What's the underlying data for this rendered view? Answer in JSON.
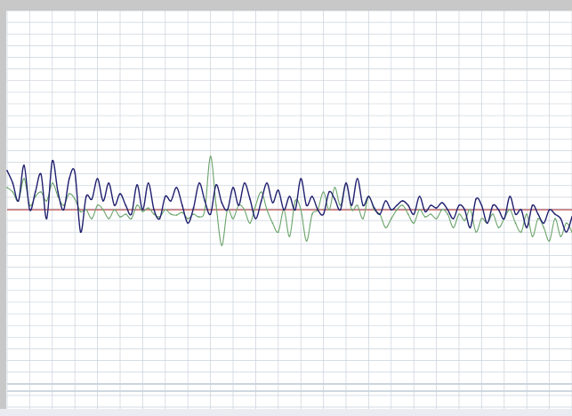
{
  "chart_data": {
    "type": "line",
    "title": "",
    "xlabel": "",
    "ylabel": "",
    "grid": true,
    "legend": "none",
    "xlim": [
      0,
      100
    ],
    "ylim": [
      -1,
      1
    ],
    "baseline": 0,
    "x_ticks": [
      "",
      "",
      "",
      "",
      "",
      "",
      "",
      "",
      "",
      "",
      "",
      "",
      "",
      "",
      "",
      "",
      "",
      "",
      "",
      "",
      "",
      "",
      "",
      "",
      ""
    ],
    "series": [
      {
        "color": "#1f1f6e",
        "x": [
          0,
          1,
          2,
          3,
          4,
          5,
          6,
          7,
          8,
          9,
          10,
          11,
          12,
          13,
          14,
          15,
          16,
          17,
          18,
          19,
          20,
          21,
          22,
          23,
          24,
          25,
          26,
          27,
          28,
          29,
          30,
          31,
          32,
          33,
          34,
          35,
          36,
          37,
          38,
          39,
          40,
          41,
          42,
          43,
          44,
          45,
          46,
          47,
          48,
          49,
          50,
          51,
          52,
          53,
          54,
          55,
          56,
          57,
          58,
          59,
          60,
          61,
          62,
          63,
          64,
          65,
          66,
          67,
          68,
          69,
          70,
          71,
          72,
          73,
          74,
          75,
          76,
          77,
          78,
          79,
          80,
          81,
          82,
          83,
          84,
          85,
          86,
          87,
          88,
          89,
          90,
          91,
          92,
          93,
          94,
          95,
          96,
          97,
          98,
          99,
          100
        ],
        "values": [
          0.44,
          0.3,
          0.1,
          0.5,
          0.0,
          0.2,
          0.4,
          -0.1,
          0.55,
          0.2,
          0.0,
          0.35,
          0.42,
          -0.25,
          0.15,
          0.12,
          0.35,
          0.1,
          0.3,
          0.05,
          0.18,
          0.05,
          -0.05,
          0.28,
          0.0,
          0.3,
          0.0,
          -0.1,
          0.15,
          0.1,
          0.25,
          0.05,
          -0.15,
          0.02,
          0.3,
          0.1,
          -0.05,
          0.28,
          0.08,
          0.0,
          0.25,
          0.05,
          0.3,
          0.12,
          -0.1,
          0.1,
          0.3,
          0.08,
          0.22,
          0.0,
          0.15,
          0.0,
          0.35,
          0.05,
          0.15,
          0.0,
          -0.05,
          0.2,
          0.12,
          0.0,
          0.3,
          0.05,
          0.35,
          0.05,
          0.15,
          0.02,
          -0.05,
          0.1,
          0.0,
          0.05,
          0.1,
          0.05,
          -0.05,
          0.15,
          -0.02,
          0.05,
          0.02,
          0.08,
          0.0,
          -0.1,
          0.05,
          0.0,
          -0.2,
          0.12,
          0.05,
          -0.15,
          0.05,
          0.0,
          -0.1,
          0.15,
          -0.05,
          0.0,
          -0.2,
          0.05,
          -0.05,
          -0.15,
          0.0,
          -0.05,
          -0.1,
          -0.25,
          -0.08
        ]
      },
      {
        "color": "#6aa36a",
        "x": [
          0,
          1,
          2,
          3,
          4,
          5,
          6,
          7,
          8,
          9,
          10,
          11,
          12,
          13,
          14,
          15,
          16,
          17,
          18,
          19,
          20,
          21,
          22,
          23,
          24,
          25,
          26,
          27,
          28,
          29,
          30,
          31,
          32,
          33,
          34,
          35,
          36,
          37,
          38,
          39,
          40,
          41,
          42,
          43,
          44,
          45,
          46,
          47,
          48,
          49,
          50,
          51,
          52,
          53,
          54,
          55,
          56,
          57,
          58,
          59,
          60,
          61,
          62,
          63,
          64,
          65,
          66,
          67,
          68,
          69,
          70,
          71,
          72,
          73,
          74,
          75,
          76,
          77,
          78,
          79,
          80,
          81,
          82,
          83,
          84,
          85,
          86,
          87,
          88,
          89,
          90,
          91,
          92,
          93,
          94,
          95,
          96,
          97,
          98,
          99,
          100
        ],
        "values": [
          0.25,
          0.2,
          0.1,
          0.35,
          0.05,
          0.15,
          0.2,
          0.1,
          0.3,
          0.15,
          0.05,
          0.18,
          0.12,
          -0.02,
          0.0,
          -0.1,
          0.05,
          0.0,
          -0.1,
          0.0,
          -0.08,
          -0.05,
          -0.1,
          0.05,
          -0.02,
          0.02,
          -0.05,
          -0.08,
          0.0,
          -0.05,
          -0.06,
          -0.03,
          -0.1,
          -0.05,
          -0.08,
          0.0,
          0.6,
          0.05,
          -0.4,
          0.0,
          -0.1,
          0.05,
          0.0,
          -0.15,
          0.05,
          0.2,
          0.0,
          -0.15,
          -0.25,
          0.0,
          -0.3,
          0.1,
          0.0,
          -0.35,
          -0.05,
          0.0,
          0.2,
          0.0,
          0.25,
          0.05,
          0.3,
          0.0,
          0.05,
          -0.1,
          0.15,
          0.0,
          -0.05,
          -0.2,
          -0.1,
          0.0,
          0.05,
          -0.05,
          -0.15,
          0.0,
          -0.08,
          -0.05,
          -0.1,
          0.0,
          -0.05,
          -0.2,
          -0.05,
          -0.12,
          0.0,
          -0.25,
          -0.1,
          -0.15,
          -0.05,
          -0.2,
          -0.1,
          0.0,
          -0.15,
          -0.25,
          -0.05,
          -0.3,
          -0.1,
          -0.2,
          -0.35,
          -0.1,
          -0.3,
          -0.15,
          -0.25
        ]
      }
    ]
  }
}
